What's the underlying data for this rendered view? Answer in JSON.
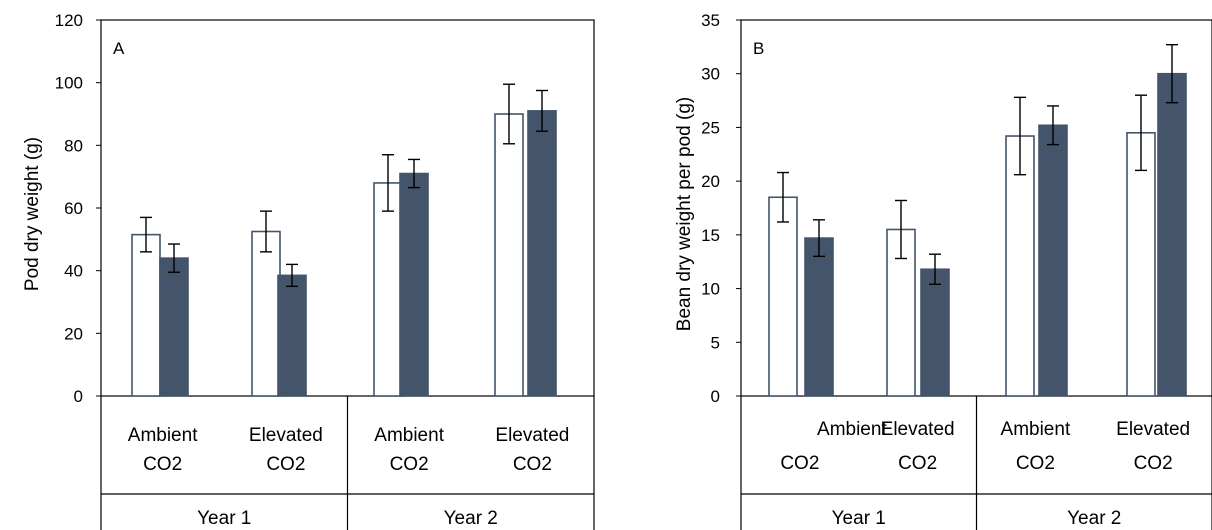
{
  "chart_data": [
    {
      "type": "bar",
      "panel_label": "A",
      "ylabel": "Pod dry weight (g)",
      "ylim": [
        0,
        120
      ],
      "yticks": [
        0,
        20,
        40,
        60,
        80,
        100,
        120
      ],
      "categories": [
        {
          "line1": "Ambient",
          "line2": "CO2",
          "group": 0
        },
        {
          "line1": "Elevated",
          "line2": "CO2",
          "group": 0
        },
        {
          "line1": "Ambient",
          "line2": "CO2",
          "group": 1
        },
        {
          "line1": "Elevated",
          "line2": "CO2",
          "group": 1
        }
      ],
      "groups": [
        "Year 1",
        "Year 2"
      ],
      "series": [
        {
          "values": [
            51.5,
            52.5,
            68,
            90
          ],
          "errors": [
            5.5,
            6.5,
            9,
            9.5
          ],
          "fill": "#ffffff",
          "stroke": "#44546a"
        },
        {
          "values": [
            44,
            38.5,
            71,
            91
          ],
          "errors": [
            4.5,
            3.5,
            4.5,
            6.5
          ],
          "fill": "#44546a",
          "stroke": "#44546a"
        }
      ]
    },
    {
      "type": "bar",
      "panel_label": "B",
      "ylabel": "Bean dry weight per pod (g)",
      "ylim": [
        0,
        35
      ],
      "yticks": [
        0,
        5,
        10,
        15,
        20,
        25,
        30,
        35
      ],
      "categories": [
        {
          "line1": "Ambient",
          "line2": "CO2",
          "group": 0
        },
        {
          "line1": "Elevated",
          "line2": "CO2",
          "group": 0
        },
        {
          "line1": "Ambient",
          "line2": "CO2",
          "group": 1
        },
        {
          "line1": "Elevated",
          "line2": "CO2",
          "group": 1
        }
      ],
      "groups": [
        "Year 1",
        "Year 2"
      ],
      "series": [
        {
          "values": [
            18.5,
            15.5,
            24.2,
            24.5
          ],
          "errors": [
            2.3,
            2.7,
            3.6,
            3.5
          ],
          "fill": "#ffffff",
          "stroke": "#44546a"
        },
        {
          "values": [
            14.7,
            11.8,
            25.2,
            30
          ],
          "errors": [
            1.7,
            1.4,
            1.8,
            2.7
          ],
          "fill": "#44546a",
          "stroke": "#44546a"
        }
      ]
    }
  ]
}
